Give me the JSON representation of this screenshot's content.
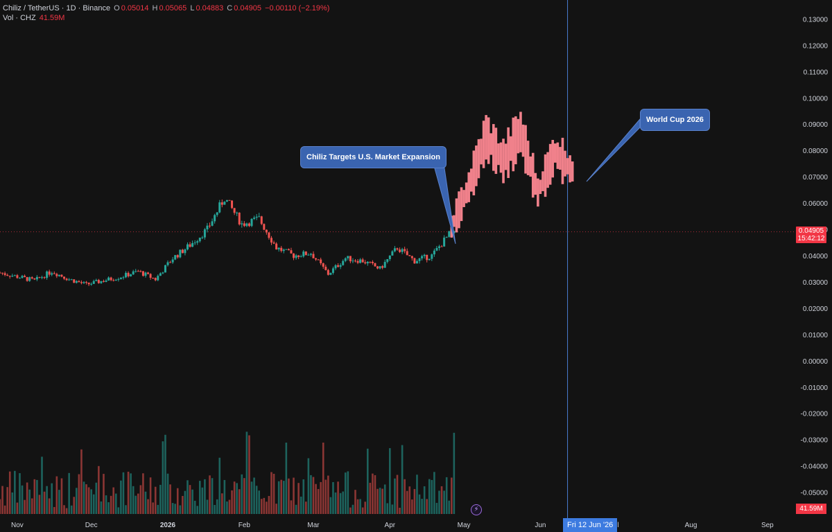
{
  "legend": {
    "symbol": "Chiliz / TetherUS · 1D · Binance",
    "o_label": "O",
    "o_value": "0.05014",
    "h_label": "H",
    "h_value": "0.05065",
    "l_label": "L",
    "l_value": "0.04883",
    "c_label": "C",
    "c_value": "0.04905",
    "change": "−0.00110 (−2.19%)",
    "vol_label": "Vol · CHZ",
    "vol_value": "41.59M"
  },
  "annotations": {
    "callout_1": "Chiliz Targets U.S. Market Expansion",
    "callout_2": "World Cup 2026"
  },
  "price_tag": {
    "price": "0.04905",
    "countdown": "15:42:12"
  },
  "crosshair_date": "Fri 12 Jun '26",
  "volume_tag": "41.59M",
  "colors": {
    "up": "#26a69a",
    "down": "#ef5350",
    "forecast": "#f0818b",
    "background": "#131313",
    "crosshair": "#4a7fd4",
    "callout": "#3a64b0"
  },
  "chart_data": {
    "type": "candlestick",
    "title": "Chiliz / TetherUS · 1D · Binance",
    "y_axis_side": "right",
    "yticks": [
      "0.13000",
      "0.12000",
      "0.11000",
      "0.10000",
      "0.09000",
      "0.08000",
      "0.07000",
      "0.06000",
      "0.05000",
      "0.04000",
      "0.03000",
      "0.02000",
      "0.01000",
      "0.00000",
      "-0.01000",
      "-0.02000",
      "-0.03000",
      "-0.04000",
      "-0.05000"
    ],
    "ylim": [
      -0.053,
      0.133
    ],
    "xticks": [
      "Nov",
      "Dec",
      "2026",
      "Feb",
      "Mar",
      "Apr",
      "May",
      "Jun",
      "Jul",
      "Aug",
      "Sep"
    ],
    "xlim": [
      "2025-10-25",
      "2026-09-12"
    ],
    "current_price": 0.04905,
    "crosshair_date": "2026-06-12",
    "close_series_approx": {
      "dates": [
        "2025-10-25",
        "2025-11-01",
        "2025-11-08",
        "2025-11-15",
        "2025-11-22",
        "2025-11-29",
        "2025-12-06",
        "2025-12-13",
        "2025-12-20",
        "2025-12-27",
        "2026-01-03",
        "2026-01-10",
        "2026-01-17",
        "2026-01-24",
        "2026-01-31",
        "2026-02-07",
        "2026-02-14",
        "2026-02-21",
        "2026-02-28",
        "2026-03-07",
        "2026-03-14",
        "2026-03-21",
        "2026-03-28",
        "2026-04-04",
        "2026-04-11",
        "2026-04-18",
        "2026-04-25"
      ],
      "values": [
        0.0335,
        0.032,
        0.0305,
        0.034,
        0.031,
        0.029,
        0.0305,
        0.032,
        0.034,
        0.031,
        0.039,
        0.044,
        0.05,
        0.062,
        0.052,
        0.054,
        0.043,
        0.04,
        0.041,
        0.033,
        0.039,
        0.038,
        0.035,
        0.043,
        0.038,
        0.04,
        0.048
      ]
    },
    "forecast_series_approx": {
      "dates": [
        "2026-04-26",
        "2026-05-03",
        "2026-05-10",
        "2026-05-17",
        "2026-05-24",
        "2026-05-31",
        "2026-06-07",
        "2026-06-14"
      ],
      "values": [
        0.051,
        0.066,
        0.085,
        0.076,
        0.087,
        0.064,
        0.079,
        0.072
      ]
    },
    "volume": {
      "label": "Vol · CHZ",
      "last": "41.59M"
    }
  }
}
